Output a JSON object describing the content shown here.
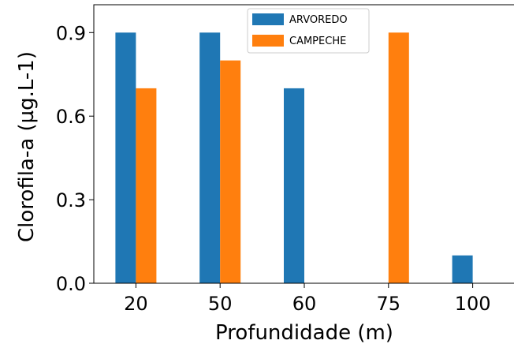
{
  "chart_data": {
    "type": "bar",
    "title": "",
    "xlabel": "Profundidade (m)",
    "ylabel": "Clorofila-a (µg.L-1)",
    "categories": [
      "20",
      "50",
      "60",
      "75",
      "100"
    ],
    "yticks": [
      "0.0",
      "0.3",
      "0.6",
      "0.9"
    ],
    "ylim": [
      0,
      1.0
    ],
    "grid": false,
    "legend_position": "top-center",
    "series": [
      {
        "name": "ARVOREDO",
        "color": "#1f77b4",
        "values": [
          0.9,
          0.9,
          0.7,
          0,
          0.1
        ]
      },
      {
        "name": "CAMPECHE",
        "color": "#ff7f0e",
        "values": [
          0.7,
          0.8,
          0,
          0.9,
          0
        ]
      }
    ]
  }
}
